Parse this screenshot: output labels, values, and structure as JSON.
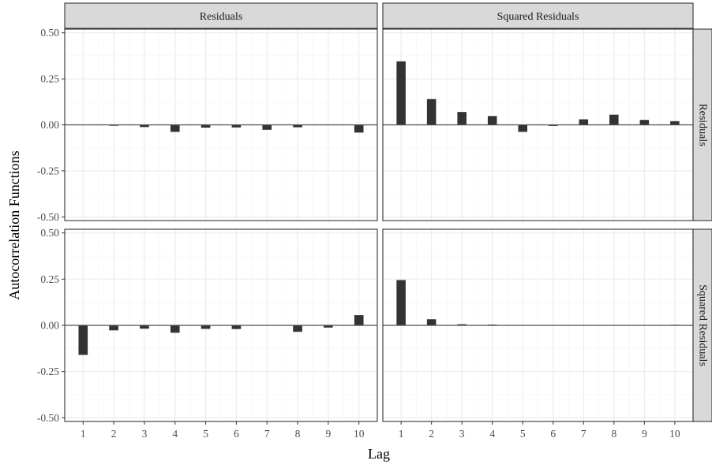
{
  "chart_data": {
    "type": "bar",
    "layout": "facet_grid",
    "xlabel": "Lag",
    "ylabel": "Autocorrelation Functions",
    "x": [
      1,
      2,
      3,
      4,
      5,
      6,
      7,
      8,
      9,
      10
    ],
    "x_ticks": [
      "1",
      "2",
      "3",
      "4",
      "5",
      "6",
      "7",
      "8",
      "9",
      "10"
    ],
    "ylim": [
      -0.52,
      0.52
    ],
    "y_ticks": [
      "0.50",
      "0.25",
      "0.00",
      "-0.25",
      "-0.50"
    ],
    "y_tick_values": [
      0.5,
      0.25,
      0.0,
      -0.25,
      -0.5
    ],
    "col_strips": [
      "Residuals",
      "Squared Residuals"
    ],
    "row_strips": [
      "Residuals",
      "Squared Residuals"
    ],
    "panels": [
      {
        "row": 0,
        "col": 0,
        "values": [
          0.0,
          -0.005,
          -0.012,
          -0.038,
          -0.015,
          -0.014,
          -0.027,
          -0.013,
          0.0,
          -0.042
        ]
      },
      {
        "row": 0,
        "col": 1,
        "values": [
          0.345,
          0.14,
          0.07,
          0.048,
          -0.038,
          -0.006,
          0.03,
          0.055,
          0.027,
          0.02
        ]
      },
      {
        "row": 1,
        "col": 0,
        "values": [
          -0.16,
          -0.027,
          -0.018,
          -0.04,
          -0.019,
          -0.02,
          0.0,
          -0.035,
          -0.012,
          0.055
        ]
      },
      {
        "row": 1,
        "col": 1,
        "values": [
          0.245,
          0.033,
          0.006,
          0.004,
          0.0,
          0.0,
          0.0,
          0.002,
          0.0,
          0.003
        ]
      }
    ],
    "grid": true,
    "colors": {
      "bar": "#333333",
      "strip": "#d9d9d9",
      "grid": "#ebebeb",
      "zero_line": "#4d4d4d"
    }
  }
}
